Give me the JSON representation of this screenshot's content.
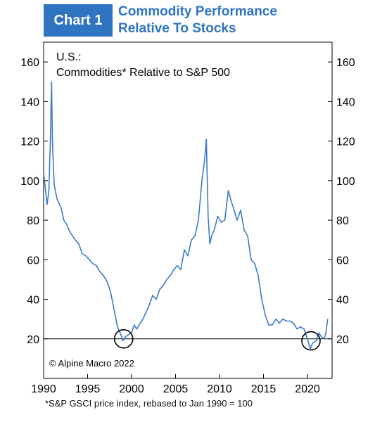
{
  "header": {
    "badge": "Chart 1",
    "title_line1": "Commodity Performance",
    "title_line2": "Relative To Stocks"
  },
  "chart_data": {
    "type": "line",
    "title": "U.S.:",
    "subtitle": "Commodities* Relative to S&P 500",
    "xlim": [
      1990,
      2022.8
    ],
    "ylim": [
      0,
      170
    ],
    "x_ticks": [
      1990,
      1995,
      2000,
      2005,
      2010,
      2015,
      2020
    ],
    "y_ticks": [
      20,
      40,
      60,
      80,
      100,
      120,
      140,
      160
    ],
    "reference_line": 20,
    "highlight_circles": [
      {
        "x": 1999.1,
        "y": 20
      },
      {
        "x": 2020.4,
        "y": 19
      }
    ],
    "colors": {
      "series": "#3a7bc8",
      "reference": "#000000",
      "circle": "#000000"
    },
    "series": [
      {
        "x": [
          1990.0,
          1990.2,
          1990.4,
          1990.6,
          1990.75,
          1990.9,
          1991.0,
          1991.2,
          1991.5,
          1991.8,
          1992.0,
          1992.3,
          1992.6,
          1993.0,
          1993.3,
          1993.6,
          1994.0,
          1994.4,
          1994.8,
          1995.2,
          1995.6,
          1996.0,
          1996.4,
          1996.8,
          1997.2,
          1997.6,
          1998.0,
          1998.4,
          1998.8,
          1999.0,
          1999.3,
          1999.6,
          2000.0,
          2000.3,
          2000.6,
          2001.0,
          2001.3,
          2001.6,
          2002.0,
          2002.4,
          2002.8,
          2003.2,
          2003.6,
          2004.0,
          2004.4,
          2004.8,
          2005.2,
          2005.6,
          2006.0,
          2006.4,
          2006.8,
          2007.2,
          2007.6,
          2008.0,
          2008.3,
          2008.5,
          2008.7,
          2008.9,
          2009.1,
          2009.4,
          2009.8,
          2010.2,
          2010.6,
          2011.0,
          2011.3,
          2011.6,
          2012.0,
          2012.4,
          2012.8,
          2013.2,
          2013.6,
          2014.0,
          2014.4,
          2014.8,
          2015.2,
          2015.6,
          2016.0,
          2016.4,
          2016.8,
          2017.2,
          2017.6,
          2018.0,
          2018.4,
          2018.8,
          2019.2,
          2019.6,
          2020.0,
          2020.3,
          2020.6,
          2021.0,
          2021.3,
          2021.6,
          2021.9,
          2022.1,
          2022.3
        ],
        "values": [
          104,
          96,
          88,
          95,
          118,
          150,
          120,
          98,
          91,
          88,
          86,
          80,
          78,
          74,
          72,
          70,
          68,
          63,
          62,
          60,
          58,
          57,
          54,
          52,
          49,
          44,
          35,
          26,
          22,
          19,
          21,
          22,
          23,
          27,
          25,
          28,
          30,
          33,
          37,
          42,
          40,
          45,
          47,
          50,
          52,
          55,
          57,
          55,
          65,
          62,
          70,
          72,
          80,
          100,
          110,
          121,
          82,
          68,
          72,
          75,
          82,
          79,
          80,
          95,
          90,
          86,
          80,
          85,
          75,
          72,
          60,
          58,
          52,
          40,
          32,
          27,
          27,
          30,
          28,
          30,
          29,
          29,
          28,
          25,
          26,
          25,
          20,
          15,
          18,
          19,
          23,
          21,
          20,
          23,
          30
        ],
        "color": "#3a7bc8"
      }
    ],
    "annotations": [
      "© Alpine Macro 2022"
    ],
    "footnote": "*S&P GSCI price index, rebased to Jan 1990 = 100"
  }
}
